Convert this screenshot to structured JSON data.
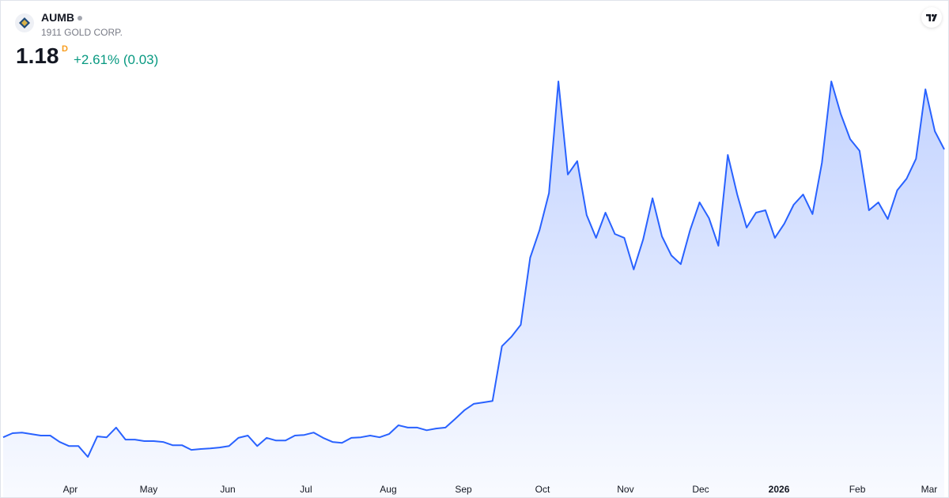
{
  "header": {
    "symbol": "AUMB",
    "name": "1911 GOLD CORP.",
    "last": "1.18",
    "interval": "D",
    "change": "+2.61% (0.03)"
  },
  "chart_data": {
    "type": "area",
    "color": "#2962ff",
    "values": [
      0.197,
      0.211,
      0.213,
      0.208,
      0.203,
      0.203,
      0.181,
      0.167,
      0.167,
      0.13,
      0.2,
      0.197,
      0.23,
      0.189,
      0.189,
      0.184,
      0.184,
      0.181,
      0.17,
      0.17,
      0.154,
      0.157,
      0.159,
      0.162,
      0.167,
      0.195,
      0.203,
      0.167,
      0.195,
      0.186,
      0.186,
      0.203,
      0.205,
      0.213,
      0.195,
      0.181,
      0.178,
      0.195,
      0.197,
      0.203,
      0.197,
      0.208,
      0.238,
      0.23,
      0.23,
      0.221,
      0.227,
      0.23,
      0.259,
      0.289,
      0.311,
      0.316,
      0.321,
      0.508,
      0.54,
      0.581,
      0.81,
      0.905,
      1.031,
      1.412,
      1.094,
      1.14,
      0.956,
      0.878,
      0.964,
      0.891,
      0.878,
      0.77,
      0.872,
      1.013,
      0.883,
      0.818,
      0.788,
      0.905,
      0.999,
      0.945,
      0.851,
      1.161,
      1.026,
      0.913,
      0.964,
      0.972,
      0.878,
      0.926,
      0.991,
      1.026,
      0.959,
      1.134,
      1.412,
      1.301,
      1.215,
      1.175,
      0.972,
      0.999,
      0.942,
      1.04,
      1.08,
      1.148,
      1.385,
      1.242,
      1.18
    ],
    "xticks": [
      {
        "value": 7.14,
        "label": "Apr"
      },
      {
        "value": 15.46,
        "label": "May"
      },
      {
        "value": 23.87,
        "label": "Jun"
      },
      {
        "value": 32.18,
        "label": "Jul"
      },
      {
        "value": 40.92,
        "label": "Aug"
      },
      {
        "value": 48.91,
        "label": "Sep"
      },
      {
        "value": 57.31,
        "label": "Oct"
      },
      {
        "value": 66.13,
        "label": "Nov"
      },
      {
        "value": 74.12,
        "label": "Dec"
      },
      {
        "value": 82.44,
        "label": "2026"
      },
      {
        "value": 90.76,
        "label": "Feb"
      },
      {
        "value": 98.4,
        "label": "Mar"
      }
    ]
  }
}
